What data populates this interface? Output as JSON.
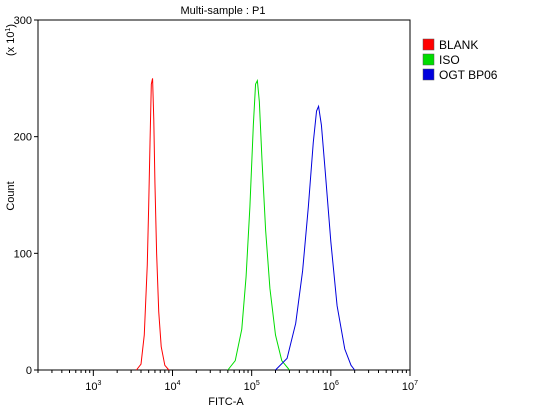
{
  "chart_data": {
    "type": "line",
    "title": "Multi-sample : P1",
    "xlabel": "FITC-A",
    "ylabel": "Count",
    "y_multiplier": "(x 10",
    "y_multiplier_exp": "1",
    "y_multiplier_close": ")",
    "x_scale": "log",
    "xlim": [
      200,
      10000000
    ],
    "ylim": [
      0,
      300
    ],
    "x_ticks": [
      {
        "value": 1000,
        "base": "10",
        "exp": "3"
      },
      {
        "value": 10000,
        "base": "10",
        "exp": "4"
      },
      {
        "value": 100000,
        "base": "10",
        "exp": "5"
      },
      {
        "value": 1000000,
        "base": "10",
        "exp": "6"
      },
      {
        "value": 10000000,
        "base": "10",
        "exp": "7"
      }
    ],
    "y_ticks": [
      {
        "value": 0,
        "label": "0"
      },
      {
        "value": 100,
        "label": "100"
      },
      {
        "value": 200,
        "label": "200"
      },
      {
        "value": 300,
        "label": "300"
      }
    ],
    "grid": false,
    "legend_position": "top-right",
    "series": [
      {
        "name": "BLANK",
        "color": "#ff0000",
        "x": [
          3500,
          4000,
          4400,
          4800,
          5000,
          5200,
          5400,
          5600,
          5800,
          6000,
          6300,
          6700,
          7200,
          8000,
          9000
        ],
        "y": [
          0,
          5,
          30,
          90,
          140,
          195,
          245,
          250,
          215,
          160,
          100,
          50,
          20,
          4,
          0
        ]
      },
      {
        "name": "ISO",
        "color": "#00dd00",
        "x": [
          50000,
          62000,
          75000,
          85000,
          95000,
          105000,
          112000,
          118000,
          125000,
          135000,
          150000,
          170000,
          200000,
          240000,
          300000
        ],
        "y": [
          0,
          8,
          35,
          80,
          140,
          210,
          245,
          248,
          230,
          180,
          120,
          70,
          30,
          8,
          0
        ]
      },
      {
        "name": "OGT BP06",
        "color": "#0000dd",
        "x": [
          200000,
          280000,
          360000,
          440000,
          520000,
          600000,
          660000,
          700000,
          760000,
          850000,
          1000000,
          1200000,
          1500000,
          1800000,
          2000000
        ],
        "y": [
          0,
          10,
          40,
          85,
          140,
          195,
          222,
          226,
          210,
          170,
          110,
          55,
          18,
          4,
          0
        ]
      }
    ]
  }
}
